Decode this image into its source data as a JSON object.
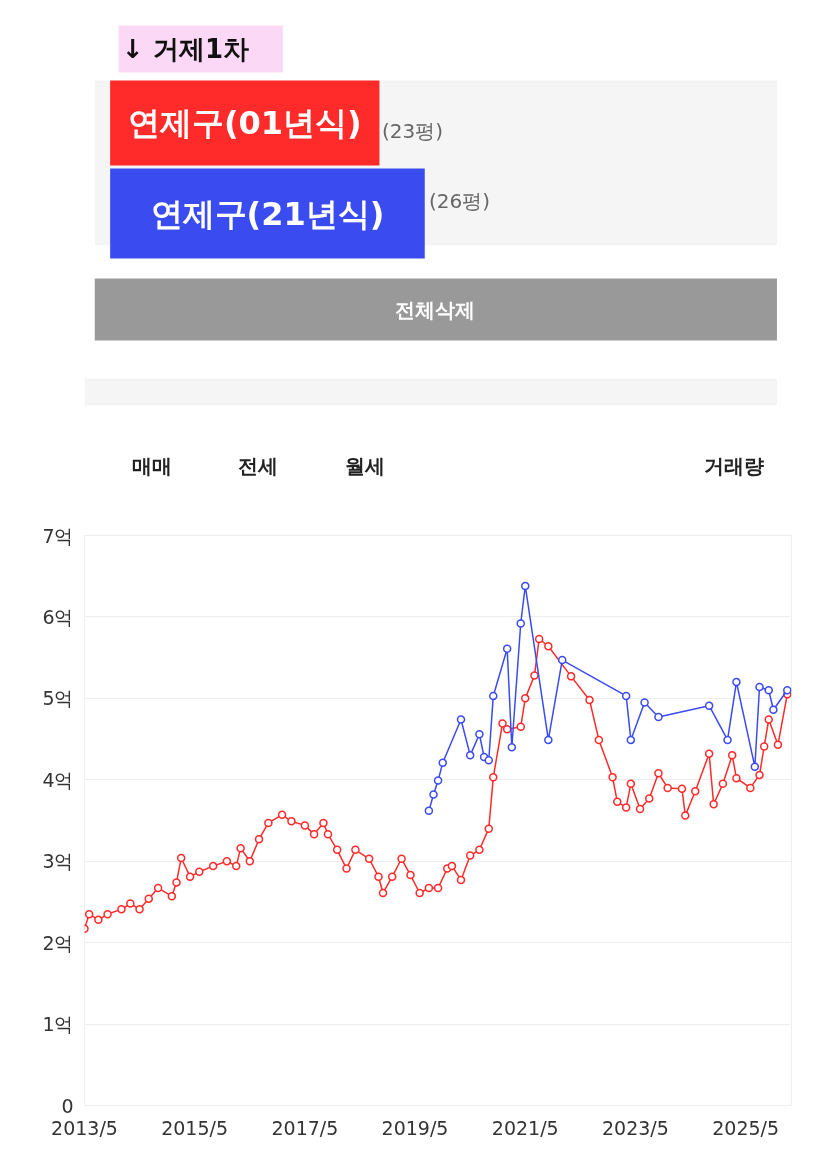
{
  "chart_data": {
    "type": "line",
    "title": "↓ 거제1차",
    "series": [
      {
        "name": "연제구(01년식)",
        "color": "#ff2a2a",
        "x": [
          "2013-05",
          "2013-06",
          "2013-08",
          "2013-10",
          "2014-01",
          "2014-03",
          "2014-05",
          "2014-07",
          "2014-09",
          "2014-12",
          "2015-01",
          "2015-02",
          "2015-04",
          "2015-06",
          "2015-09",
          "2015-12",
          "2016-02",
          "2016-03",
          "2016-05",
          "2016-07",
          "2016-09",
          "2016-12",
          "2017-02",
          "2017-05",
          "2017-07",
          "2017-09",
          "2017-10",
          "2017-12",
          "2018-02",
          "2018-04",
          "2018-07",
          "2018-09",
          "2018-10",
          "2018-12",
          "2019-02",
          "2019-04",
          "2019-06",
          "2019-08",
          "2019-10",
          "2019-12",
          "2020-01",
          "2020-03",
          "2020-05",
          "2020-07",
          "2020-09",
          "2020-10",
          "2020-12",
          "2021-01",
          "2021-04",
          "2021-05",
          "2021-07",
          "2021-08",
          "2021-10",
          "2022-03",
          "2022-07",
          "2022-09",
          "2022-12",
          "2023-01",
          "2023-03",
          "2023-04",
          "2023-06",
          "2023-08",
          "2023-10",
          "2023-12",
          "2024-03-05",
          "2024-03-27",
          "2024-06",
          "2024-09",
          "2024-10",
          "2024-12",
          "2025-02",
          "2025-03",
          "2025-06",
          "2025-08",
          "2025-09",
          "2025-10",
          "2025-12",
          "2026-02"
        ],
        "values": [
          2.17,
          2.35,
          2.28,
          2.35,
          2.41,
          2.48,
          2.41,
          2.54,
          2.67,
          2.57,
          2.74,
          3.04,
          2.81,
          2.87,
          2.94,
          3.0,
          2.94,
          3.16,
          3.0,
          3.27,
          3.47,
          3.57,
          3.49,
          3.44,
          3.33,
          3.47,
          3.33,
          3.14,
          2.91,
          3.14,
          3.03,
          2.81,
          2.61,
          2.81,
          3.03,
          2.83,
          2.61,
          2.67,
          2.67,
          2.91,
          2.94,
          2.77,
          3.07,
          3.14,
          3.4,
          4.03,
          4.69,
          4.62,
          4.65,
          5.0,
          5.28,
          5.73,
          5.64,
          5.27,
          4.98,
          4.49,
          4.03,
          3.73,
          3.66,
          3.95,
          3.64,
          3.77,
          4.08,
          3.9,
          3.89,
          3.56,
          3.86,
          4.32,
          3.7,
          3.95,
          4.3,
          4.02,
          3.9,
          4.06,
          4.41,
          4.74,
          4.43,
          5.05
        ]
      },
      {
        "name": "연제구(21년식)",
        "color": "#3a4cf0",
        "x": [
          "2019-08",
          "2019-09",
          "2019-10",
          "2019-11",
          "2020-03",
          "2020-05",
          "2020-07",
          "2020-08",
          "2020-09",
          "2020-10",
          "2021-01",
          "2021-02",
          "2021-04",
          "2021-05",
          "2021-10",
          "2022-01",
          "2023-03",
          "2023-04",
          "2023-07",
          "2023-10",
          "2024-09",
          "2025-01",
          "2025-03",
          "2025-07",
          "2025-08",
          "2025-10",
          "2025-11",
          "2026-02"
        ],
        "values": [
          3.62,
          3.82,
          3.99,
          4.21,
          4.74,
          4.3,
          4.56,
          4.28,
          4.24,
          5.03,
          5.61,
          4.4,
          5.92,
          6.38,
          4.49,
          5.47,
          5.03,
          4.49,
          4.95,
          4.77,
          4.91,
          4.49,
          5.2,
          4.16,
          5.14,
          5.1,
          4.86,
          5.1
        ]
      }
    ],
    "xlim": [
      "2013-05",
      "2026-03"
    ],
    "xticks": [
      {
        "value": "2013-05",
        "label": "2013/5"
      },
      {
        "value": "2015-05",
        "label": "2015/5"
      },
      {
        "value": "2017-05",
        "label": "2017/5"
      },
      {
        "value": "2019-05",
        "label": "2019/5"
      },
      {
        "value": "2021-05",
        "label": "2021/5"
      },
      {
        "value": "2023-05",
        "label": "2023/5"
      },
      {
        "value": "2025-05",
        "label": "2025/5"
      }
    ],
    "ylim": [
      0,
      7
    ],
    "yticks": [
      0,
      {
        "value": 1,
        "label": "1억"
      },
      {
        "value": 2,
        "label": "2억"
      },
      {
        "value": 3,
        "label": "3억"
      },
      {
        "value": 4,
        "label": "4억"
      },
      {
        "value": 5,
        "label": "5억"
      },
      {
        "value": 6,
        "label": "6억"
      },
      {
        "value": 7,
        "label": "7억"
      }
    ],
    "grid": "y",
    "legend": "top",
    "marker": "circle",
    "line_style": "solid",
    "annotations": [
      "(23평)",
      "(26평)",
      "전체삭제",
      "매매",
      "전세",
      "월세",
      "거래량"
    ]
  }
}
